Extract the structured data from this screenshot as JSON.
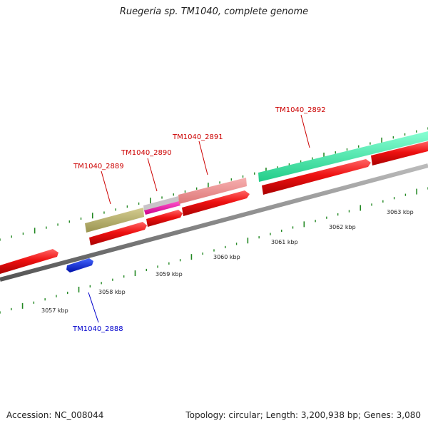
{
  "title": "Ruegeria sp. TM1040, complete genome",
  "footer": {
    "accession": "Accession: NC_008044",
    "summary": "Topology: circular; Length: 3,200,938 bp; Genes: 3,080"
  },
  "colors": {
    "forward_cds": "#ee1111",
    "reverse_cds": "#1122dd",
    "backbone": "#888888",
    "tick": "#228822",
    "label_forward": "#cc0000",
    "label_reverse": "#0000cc"
  },
  "genome_map": {
    "kbp_ticks": [
      "3057 kbp",
      "3058 kbp",
      "3059 kbp",
      "3060 kbp",
      "3061 kbp",
      "3062 kbp",
      "3063 kbp"
    ],
    "features": [
      {
        "label": "TM1040_2888",
        "strand": "reverse",
        "color": "#1122dd"
      },
      {
        "label": "TM1040_2889",
        "strand": "forward",
        "color": "#b8b070"
      },
      {
        "label": "TM1040_2890",
        "strand": "forward",
        "color": "#ee1199"
      },
      {
        "label": "TM1040_2891",
        "strand": "forward",
        "color": "#ee8888"
      },
      {
        "label": "TM1040_2892",
        "strand": "forward",
        "color": "#33eeaa"
      }
    ]
  }
}
